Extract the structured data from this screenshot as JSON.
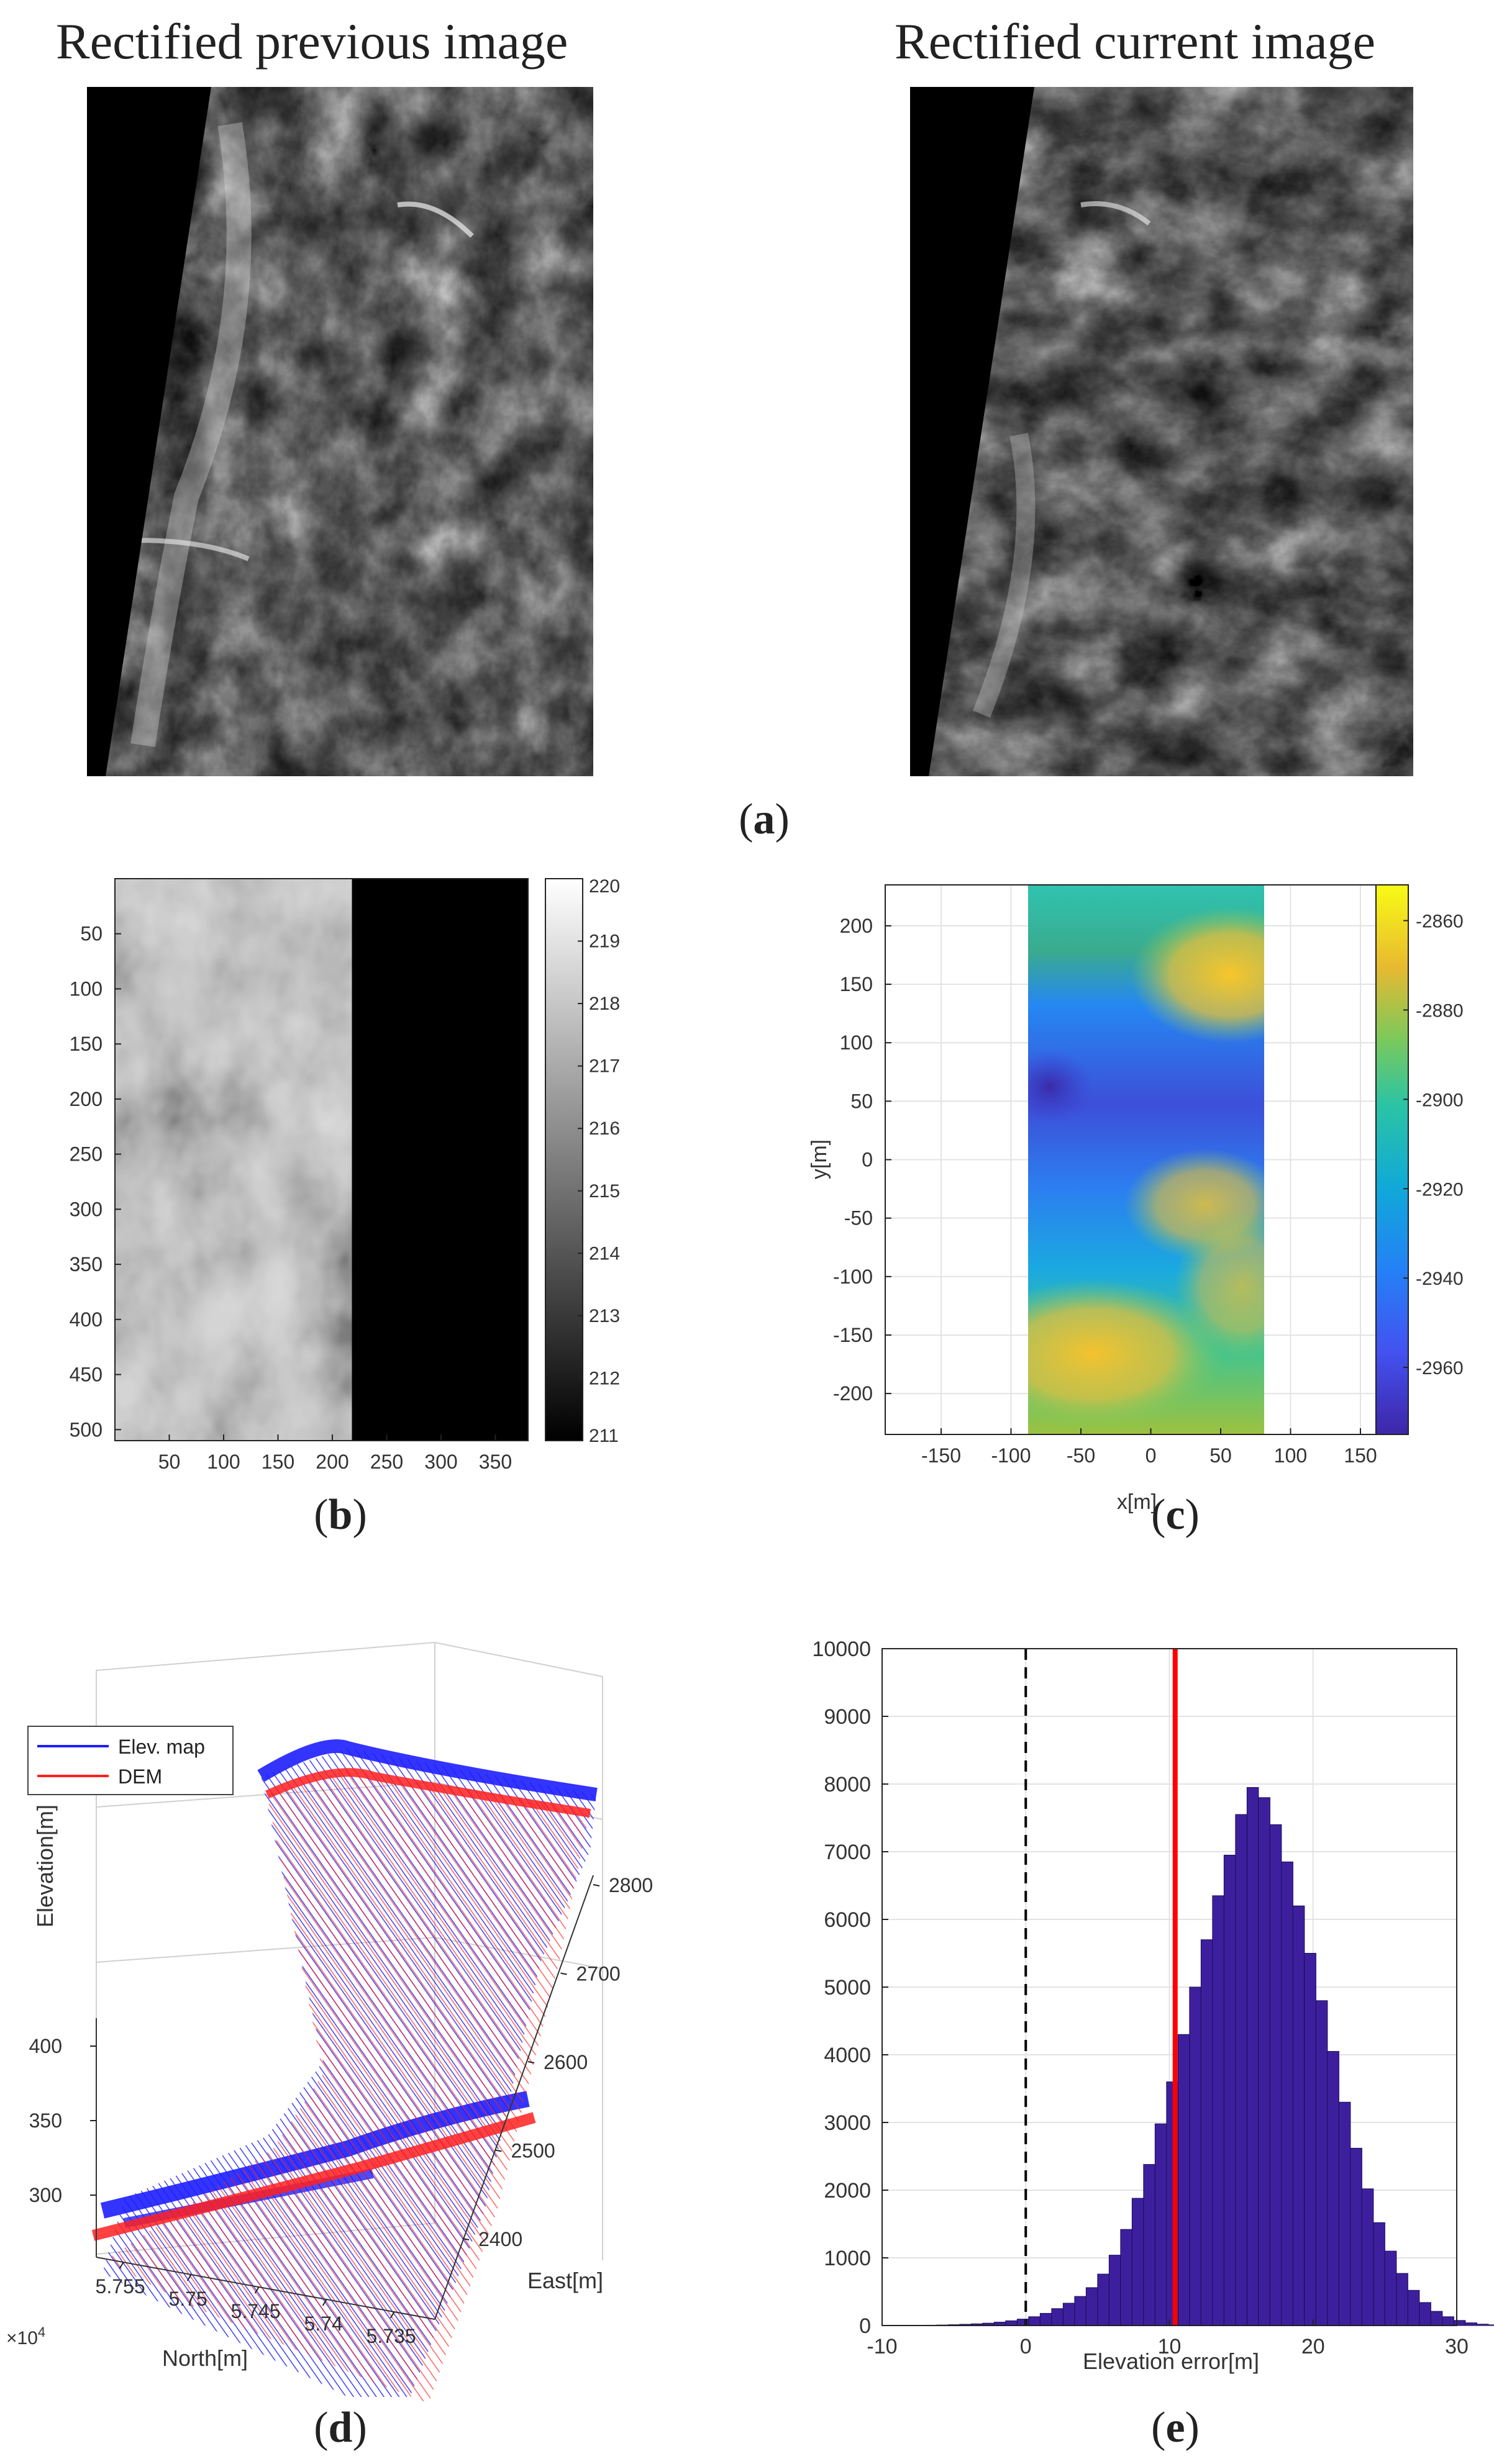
{
  "panel_a": {
    "left_title": "Rectified previous image",
    "right_title": "Rectified current image",
    "label_open": "(",
    "label_letter": "a",
    "label_close": ")"
  },
  "panel_labels": {
    "b": "b",
    "c": "c",
    "d": "d",
    "e": "e"
  },
  "chart_data": [
    {
      "id": "b",
      "type": "heatmap",
      "colormap": "gray",
      "x_ticks": [
        "50",
        "100",
        "150",
        "200",
        "250",
        "300",
        "350"
      ],
      "y_ticks": [
        "50",
        "100",
        "150",
        "200",
        "250",
        "300",
        "350",
        "400",
        "450",
        "500"
      ],
      "xlim": [
        0,
        380
      ],
      "ylim": [
        0,
        510
      ],
      "colorbar_ticks": [
        "220",
        "219",
        "218",
        "217",
        "216",
        "215",
        "214",
        "213",
        "212",
        "211"
      ],
      "colorbar_range": [
        211,
        220
      ],
      "data_extent_x": [
        0,
        218
      ]
    },
    {
      "id": "c",
      "type": "heatmap",
      "colormap": "parula",
      "xlabel": "x[m]",
      "ylabel": "y[m]",
      "x_ticks": [
        "-150",
        "-100",
        "-50",
        "0",
        "50",
        "100",
        "150"
      ],
      "y_ticks": [
        "200",
        "150",
        "100",
        "50",
        "0",
        "-50",
        "-100",
        "-150",
        "-200"
      ],
      "xlim": [
        -190,
        170
      ],
      "ylim": [
        -235,
        235
      ],
      "colorbar_ticks": [
        "-2860",
        "-2880",
        "-2900",
        "-2920",
        "-2940",
        "-2960"
      ],
      "colorbar_range": [
        -2975,
        -2852
      ],
      "grid": true
    },
    {
      "id": "d",
      "type": "scatter",
      "projection": "3d",
      "legend": [
        "Elev. map",
        "DEM"
      ],
      "legend_position": "top-left",
      "series_colors": [
        "#1e1eff",
        "#ff2020"
      ],
      "zlabel": "Elevation[m]",
      "xlabel": "North[m]",
      "ylabel": "East[m]",
      "x_ticks": [
        "5.755",
        "5.75",
        "5.745",
        "5.74",
        "5.735"
      ],
      "x_multiplier_base": "×10",
      "x_multiplier_exp": "4",
      "y_ticks": [
        "2400",
        "2500",
        "2600",
        "2700",
        "2800"
      ],
      "z_ticks": [
        "400",
        "350",
        "300"
      ]
    },
    {
      "id": "e",
      "type": "bar",
      "subtype": "histogram",
      "xlabel": "Elevation error[m]",
      "x_ticks": [
        "-10",
        "0",
        "10",
        "20",
        "30"
      ],
      "y_ticks": [
        "10000",
        "9000",
        "8000",
        "7000",
        "6000",
        "5000",
        "4000",
        "3000",
        "2000",
        "1000",
        "0"
      ],
      "xlim": [
        -10,
        30
      ],
      "ylim": [
        0,
        10000
      ],
      "bin_width": 0.8,
      "bin_start": -7,
      "values": [
        5,
        8,
        12,
        18,
        25,
        35,
        50,
        70,
        95,
        130,
        180,
        250,
        330,
        430,
        560,
        760,
        1040,
        1420,
        1880,
        2380,
        2980,
        3600,
        4300,
        5000,
        5700,
        6350,
        6950,
        7550,
        7950,
        7800,
        7400,
        6850,
        6200,
        5500,
        4800,
        4050,
        3300,
        2620,
        2020,
        1520,
        1100,
        770,
        520,
        340,
        210,
        130,
        75,
        40,
        20,
        10
      ],
      "bar_color": "#3d1f9e",
      "vlines": [
        {
          "x": 0,
          "style": "dashed",
          "color": "#000000"
        },
        {
          "x": 10.4,
          "style": "solid",
          "color": "#ff0000"
        }
      ],
      "grid": true
    }
  ]
}
